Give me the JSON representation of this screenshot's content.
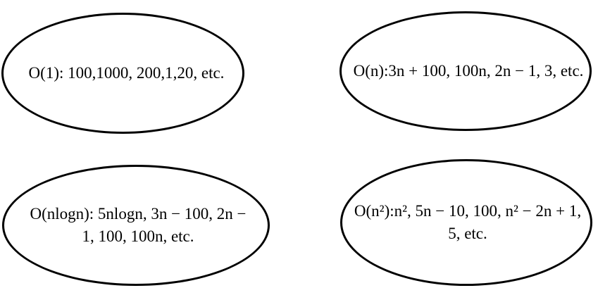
{
  "nodes": [
    {
      "id": "o1",
      "lines": [
        "O(1): 100,1000, 200,1,20, etc."
      ]
    },
    {
      "id": "on",
      "lines": [
        "O(n):3n + 100,  100n, 2n − 1, 3, etc."
      ]
    },
    {
      "id": "onlogn",
      "lines": [
        "O(nlogn): 5nlogn, 3n − 100, 2n −",
        "1, 100, 100n, etc."
      ]
    },
    {
      "id": "on2",
      "lines": [
        "O(n²):n², 5n − 10, 100, n² − 2n + 1,",
        "5, etc."
      ]
    }
  ]
}
